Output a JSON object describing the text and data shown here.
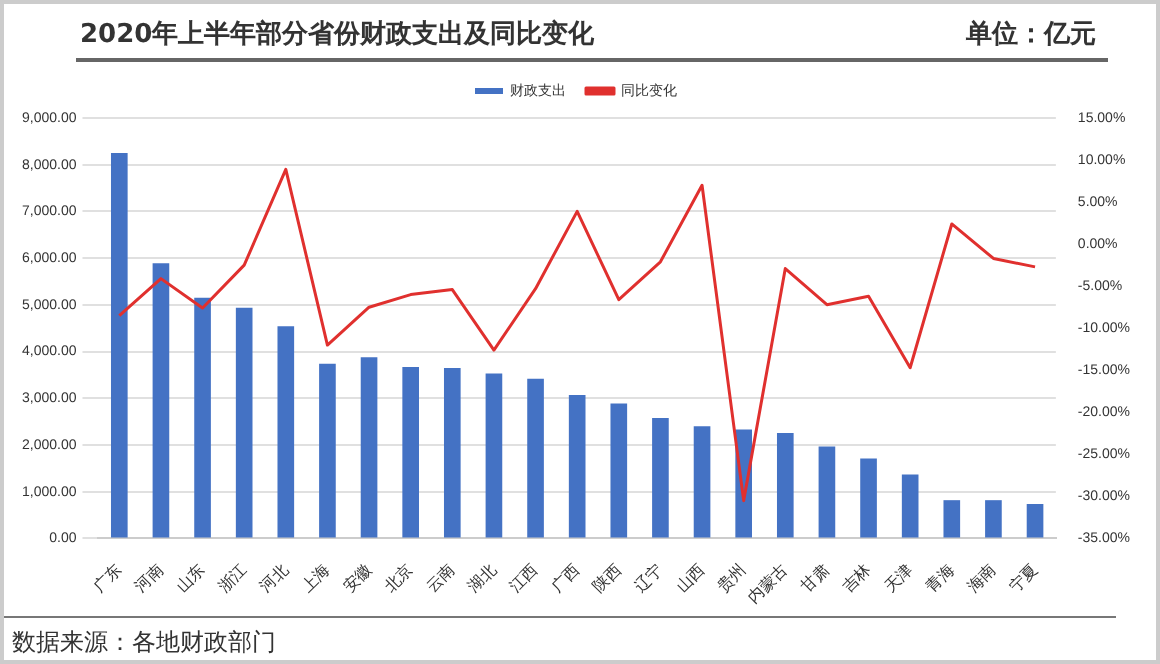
{
  "chart_data": {
    "type": "bar",
    "title": "2020年上半年部分省份财政支出及同比变化",
    "annotations": [
      "单位：亿元",
      "数据来源：各地财政部门"
    ],
    "categories": [
      "广东",
      "河南",
      "山东",
      "浙江",
      "河北",
      "上海",
      "安徽",
      "北京",
      "云南",
      "湖北",
      "江西",
      "广西",
      "陕西",
      "辽宁",
      "山西",
      "贵州",
      "内蒙古",
      "甘肃",
      "吉林",
      "天津",
      "青海",
      "海南",
      "宁夏"
    ],
    "series": [
      {
        "name": "财政支出",
        "color": "#4472c4",
        "values": [
          8250,
          5890,
          5150,
          4940,
          4540,
          3740,
          3880,
          3670,
          3650,
          3530,
          3420,
          3070,
          2890,
          2580,
          2400,
          2330,
          2260,
          1970,
          1710,
          1370,
          820,
          820,
          740
        ]
      },
      {
        "name": "同比变化",
        "type": "line",
        "axis": "y2",
        "color": "#e0302e",
        "values": [
          -8.5,
          -4.1,
          -7.6,
          -2.5,
          8.9,
          -12.0,
          -7.5,
          -6.0,
          -5.4,
          -12.6,
          -5.3,
          3.9,
          -6.6,
          -2.1,
          7.0,
          -30.5,
          -2.9,
          -7.2,
          -6.2,
          -14.7,
          2.4,
          -1.7,
          -2.7
        ]
      }
    ],
    "ylim": [
      0,
      9000
    ],
    "yticks": [
      {
        "value": 0,
        "label": "0.00"
      },
      {
        "value": 1000,
        "label": "1,000.00"
      },
      {
        "value": 2000,
        "label": "2,000.00"
      },
      {
        "value": 3000,
        "label": "3,000.00"
      },
      {
        "value": 4000,
        "label": "4,000.00"
      },
      {
        "value": 5000,
        "label": "5,000.00"
      },
      {
        "value": 6000,
        "label": "6,000.00"
      },
      {
        "value": 7000,
        "label": "7,000.00"
      },
      {
        "value": 8000,
        "label": "8,000.00"
      },
      {
        "value": 9000,
        "label": "9,000.00"
      }
    ],
    "y2lim": [
      -35,
      15
    ],
    "y2ticks": [
      {
        "value": -35,
        "label": "-35.00%"
      },
      {
        "value": -30,
        "label": "-30.00%"
      },
      {
        "value": -25,
        "label": "-25.00%"
      },
      {
        "value": -20,
        "label": "-20.00%"
      },
      {
        "value": -15,
        "label": "-15.00%"
      },
      {
        "value": -10,
        "label": "-10.00%"
      },
      {
        "value": -5,
        "label": "-5.00%"
      },
      {
        "value": 0,
        "label": "0.00%"
      },
      {
        "value": 5,
        "label": "5.00%"
      },
      {
        "value": 10,
        "label": "10.00%"
      },
      {
        "value": 15,
        "label": "15.00%"
      }
    ],
    "grid": "y",
    "legend": "top",
    "marker": "none",
    "line_style": "solid"
  }
}
